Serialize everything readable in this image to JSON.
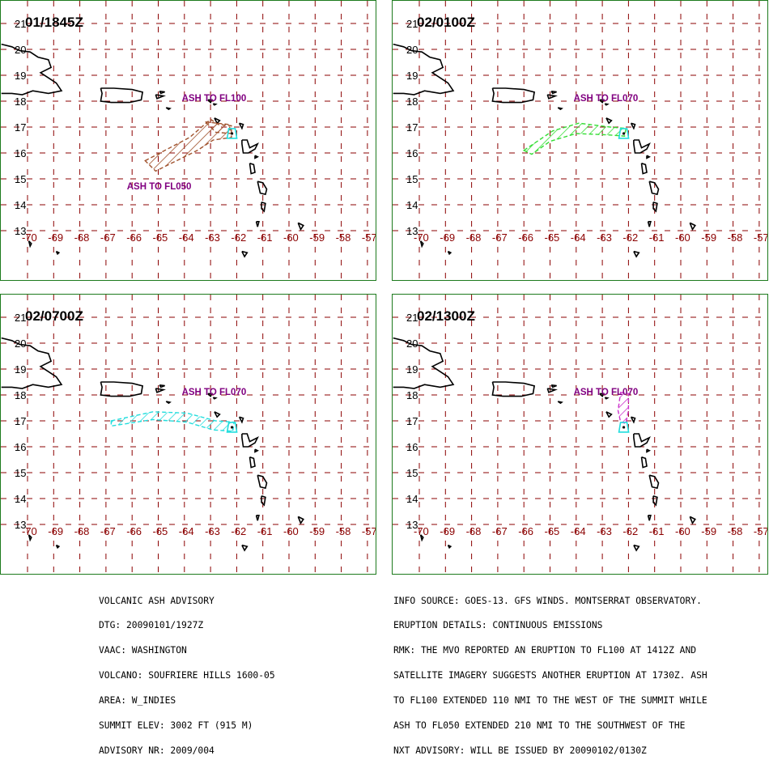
{
  "panels": [
    {
      "title": "01/1845Z",
      "labels": [
        {
          "text": "ASH TO FL100",
          "lon": -64.1,
          "lat": 18.0
        },
        {
          "text": "ASH TO FL050",
          "lon": -66.2,
          "lat": 14.6
        }
      ],
      "ash_color": "#a0522d"
    },
    {
      "title": "02/0100Z",
      "labels": [
        {
          "text": "ASH TO FL070",
          "lon": -64.1,
          "lat": 18.0
        }
      ],
      "ash_color": "#33dd33"
    },
    {
      "title": "02/0700Z",
      "labels": [
        {
          "text": "ASH TO FL070",
          "lon": -64.1,
          "lat": 18.0
        }
      ],
      "ash_color": "#22dddd"
    },
    {
      "title": "02/1300Z",
      "labels": [
        {
          "text": "ASH TO FL070",
          "lon": -64.1,
          "lat": 18.0
        }
      ],
      "ash_color": "#cc33cc"
    }
  ],
  "grid": {
    "lon_labels": [
      "-70",
      "-69",
      "-68",
      "-67",
      "-66",
      "-65",
      "-64",
      "-63",
      "-62",
      "-61",
      "-60",
      "-59",
      "-58",
      "-57"
    ],
    "lat_labels": [
      "21",
      "20",
      "19",
      "18",
      "17",
      "16",
      "15",
      "14",
      "13"
    ],
    "grid_color": "#8b0000",
    "label_color": "#8b0000",
    "lat_label_color": "#000000"
  },
  "volcano_color": "#22dddd",
  "ash_label_color": "#800080",
  "advisory_left": [
    "VOLCANIC ASH ADVISORY",
    "DTG: 20090101/1927Z",
    "VAAC: WASHINGTON",
    "VOLCANO: SOUFRIERE HILLS 1600-05",
    "AREA: W_INDIES",
    "SUMMIT ELEV: 3002 FT (915 M)",
    "ADVISORY NR: 2009/004"
  ],
  "advisory_right": [
    "INFO SOURCE: GOES-13. GFS WINDS. MONTSERRAT OBSERVATORY.",
    "ERUPTION DETAILS: CONTINUOUS EMISSIONS",
    "RMK: THE MVO REPORTED AN ERUPTION TO FL100 AT 1412Z AND",
    "SATELLITE IMAGERY SUGGESTS ANOTHER ERUPTION AT 1730Z. ASH",
    "TO FL100 EXTENDED 110 NMI TO THE WEST OF THE SUMMIT WHILE",
    "ASH TO FL050 EXTENDED 210 NMI TO THE SOUTHWEST OF THE",
    "NXT ADVISORY: WILL BE ISSUED BY 20090102/0130Z"
  ]
}
